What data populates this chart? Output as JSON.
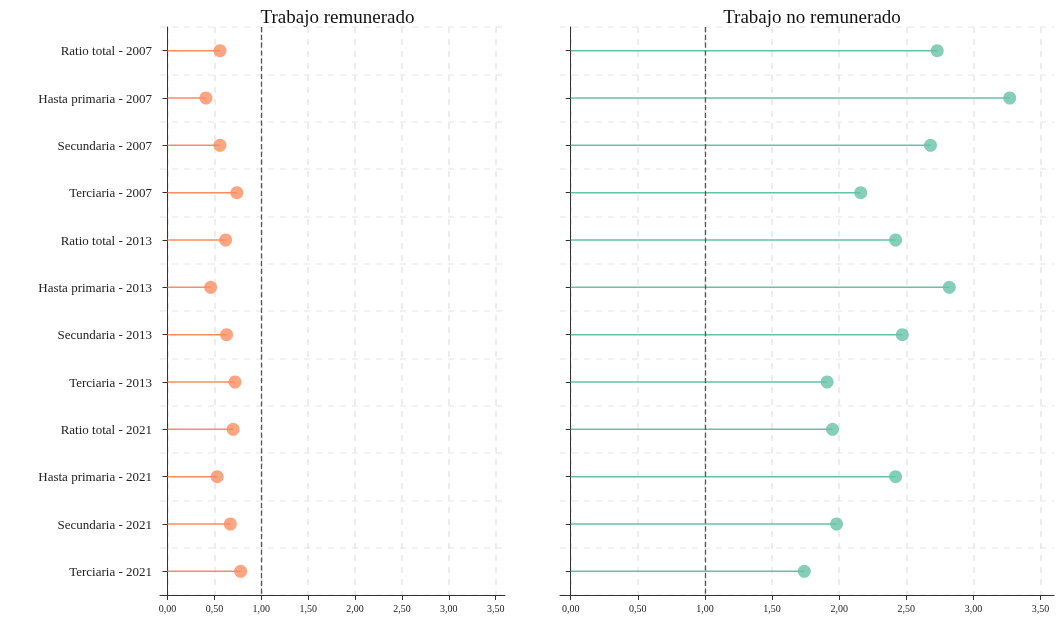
{
  "chart_data": [
    {
      "type": "lollipop",
      "title": "Trabajo remunerado",
      "orientation": "horizontal",
      "categories": [
        "Ratio total - 2007",
        "Hasta primaria - 2007",
        "Secundaria - 2007",
        "Terciaria - 2007",
        "Ratio total - 2013",
        "Hasta primaria - 2013",
        "Secundaria - 2013",
        "Terciaria - 2013",
        "Ratio total - 2021",
        "Hasta primaria - 2021",
        "Secundaria - 2021",
        "Terciaria - 2021"
      ],
      "series": [
        {
          "color": "#fc8d62",
          "values": [
            0.56,
            0.41,
            0.56,
            0.74,
            0.62,
            0.46,
            0.63,
            0.72,
            0.7,
            0.53,
            0.67,
            0.78
          ]
        }
      ],
      "xlim": [
        -0.08,
        3.6
      ],
      "xticks": [
        {
          "value": 0,
          "label": "0,00"
        },
        {
          "value": 0.5,
          "label": "0,50"
        },
        {
          "value": 1,
          "label": "1,00"
        },
        {
          "value": 1.5,
          "label": "1,50"
        },
        {
          "value": 2,
          "label": "2,00"
        },
        {
          "value": 2.5,
          "label": "2,50"
        },
        {
          "value": 3,
          "label": "3,00"
        },
        {
          "value": 3.5,
          "label": "3,50"
        }
      ],
      "ref_lines": [
        {
          "axis": "x",
          "value": 1,
          "color": "#555555",
          "line_style": "dashed"
        }
      ],
      "grid": true,
      "marker": "circle"
    },
    {
      "type": "lollipop",
      "title": "Trabajo no remunerado",
      "orientation": "horizontal",
      "categories": [
        null,
        null,
        null,
        null,
        null,
        null,
        null,
        null,
        null,
        null,
        null,
        null
      ],
      "series": [
        {
          "color": "#66c2a5",
          "values": [
            2.73,
            3.27,
            2.68,
            2.16,
            2.42,
            2.82,
            2.47,
            1.91,
            1.95,
            2.42,
            1.98,
            1.74
          ]
        }
      ],
      "xlim": [
        -0.08,
        3.6
      ],
      "xticks": [
        {
          "value": 0,
          "label": "0,00"
        },
        {
          "value": 0.5,
          "label": "0,50"
        },
        {
          "value": 1,
          "label": "1,00"
        },
        {
          "value": 1.5,
          "label": "1,50"
        },
        {
          "value": 2,
          "label": "2,00"
        },
        {
          "value": 2.5,
          "label": "2,50"
        },
        {
          "value": 3,
          "label": "3,00"
        },
        {
          "value": 3.5,
          "label": "3,50"
        }
      ],
      "ref_lines": [
        {
          "axis": "x",
          "value": 1,
          "color": "#555555",
          "line_style": "dashed"
        }
      ],
      "grid": true,
      "marker": "circle",
      "tick_labels": "x"
    }
  ]
}
